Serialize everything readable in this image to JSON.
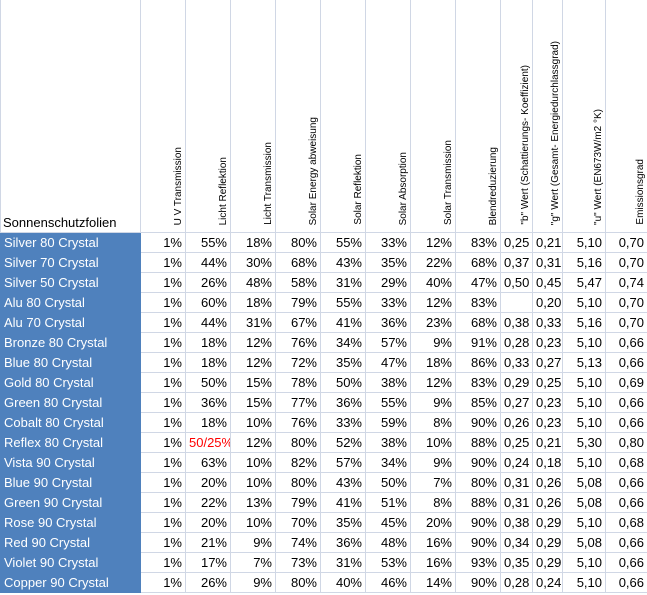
{
  "table": {
    "header": [
      "Sonnenschutzfolien",
      "U V Transmission",
      "Licht Reflektion",
      "Licht Transmission",
      "Solar Energy abweisung",
      "Solar Reflektion",
      "Solar Absorption",
      "Solar Transmission",
      "Blendreduzierung",
      "\"b\" Wert (Schattierungs- Koeffizient)",
      "\"g\" Wert (Gesamt- Energiedurchlassgrad)",
      "\"u\" Wert (EN673W/m2 °K)",
      "Emissionsgrad"
    ],
    "rows": [
      [
        "Silver 80 Crystal",
        "1%",
        "55%",
        "18%",
        "80%",
        "55%",
        "33%",
        "12%",
        "83%",
        "0,25",
        "0,21",
        "5,10",
        "0,70"
      ],
      [
        "Silver 70 Crystal",
        "1%",
        "44%",
        "30%",
        "68%",
        "43%",
        "35%",
        "22%",
        "68%",
        "0,37",
        "0,31",
        "5,16",
        "0,70"
      ],
      [
        "Silver 50 Crystal",
        "1%",
        "26%",
        "48%",
        "58%",
        "31%",
        "29%",
        "40%",
        "47%",
        "0,50",
        "0,45",
        "5,47",
        "0,74"
      ],
      [
        "Alu 80 Crystal",
        "1%",
        "60%",
        "18%",
        "79%",
        "55%",
        "33%",
        "12%",
        "83%",
        null,
        "0,20",
        "5,10",
        "0,70"
      ],
      [
        "Alu 70 Crystal",
        "1%",
        "44%",
        "31%",
        "67%",
        "41%",
        "36%",
        "23%",
        "68%",
        "0,38",
        "0,33",
        "5,16",
        "0,70"
      ],
      [
        "Bronze 80 Crystal",
        "1%",
        "18%",
        "12%",
        "76%",
        "34%",
        "57%",
        "9%",
        "91%",
        "0,28",
        "0,23",
        "5,10",
        "0,66"
      ],
      [
        "Blue 80 Crystal",
        "1%",
        "18%",
        "12%",
        "72%",
        "35%",
        "47%",
        "18%",
        "86%",
        "0,33",
        "0,27",
        "5,13",
        "0,66"
      ],
      [
        "Gold 80 Crystal",
        "1%",
        "50%",
        "15%",
        "78%",
        "50%",
        "38%",
        "12%",
        "83%",
        "0,29",
        "0,25",
        "5,10",
        "0,69"
      ],
      [
        "Green 80 Crystal",
        "1%",
        "36%",
        "15%",
        "77%",
        "36%",
        "55%",
        "9%",
        "85%",
        "0,27",
        "0,23",
        "5,10",
        "0,66"
      ],
      [
        "Cobalt 80 Crystal",
        "1%",
        "18%",
        "10%",
        "76%",
        "33%",
        "59%",
        "8%",
        "90%",
        "0,26",
        "0,23",
        "5,10",
        "0,66"
      ],
      [
        "Reflex 80 Crystal",
        "1%",
        "50/25%",
        "12%",
        "80%",
        "52%",
        "38%",
        "10%",
        "88%",
        "0,25",
        "0,21",
        "5,30",
        "0,80"
      ],
      [
        "Vista 90 Crystal",
        "1%",
        "63%",
        "10%",
        "82%",
        "57%",
        "34%",
        "9%",
        "90%",
        "0,24",
        "0,18",
        "5,10",
        "0,68"
      ],
      [
        "Blue 90 Crystal",
        "1%",
        "20%",
        "10%",
        "80%",
        "43%",
        "50%",
        "7%",
        "80%",
        "0,31",
        "0,26",
        "5,08",
        "0,66"
      ],
      [
        "Green 90 Crystal",
        "1%",
        "22%",
        "13%",
        "79%",
        "41%",
        "51%",
        "8%",
        "88%",
        "0,31",
        "0,26",
        "5,08",
        "0,66"
      ],
      [
        "Rose 90 Crystal",
        "1%",
        "20%",
        "10%",
        "70%",
        "35%",
        "45%",
        "20%",
        "90%",
        "0,38",
        "0,29",
        "5,10",
        "0,68"
      ],
      [
        "Red 90 Crystal",
        "1%",
        "21%",
        "9%",
        "74%",
        "36%",
        "48%",
        "16%",
        "90%",
        "0,34",
        "0,29",
        "5,08",
        "0,66"
      ],
      [
        "Violet 90 Crystal",
        "1%",
        "17%",
        "7%",
        "73%",
        "31%",
        "53%",
        "16%",
        "93%",
        "0,35",
        "0,29",
        "5,10",
        "0,66"
      ],
      [
        "Copper 90 Crystal",
        "1%",
        "26%",
        "9%",
        "80%",
        "40%",
        "46%",
        "14%",
        "90%",
        "0,28",
        "0,24",
        "5,10",
        "0,66"
      ]
    ]
  }
}
